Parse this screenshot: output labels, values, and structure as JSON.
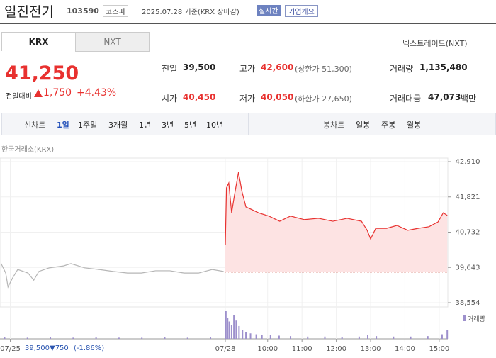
{
  "header": {
    "name": "일진전기",
    "code": "103590",
    "market": "코스피",
    "date": "2025.07.28 기준(KRX 장마감)",
    "realtime": "실시간",
    "company": "기업개요"
  },
  "tabs": [
    "KRX",
    "NXT"
  ],
  "nxt_link": "넥스트레이드(NXT)",
  "quote": {
    "price": "41,250",
    "change_label": "전일대비",
    "change": "1,750",
    "change_rate": "+4.43%",
    "items": [
      {
        "label": "전일",
        "value": "39,500"
      },
      {
        "label": "고가",
        "value": "42,600",
        "note": "(상한가 51,300)"
      },
      {
        "label": "거래량",
        "value": "1,135,480"
      },
      {
        "label": "시가",
        "value": "40,450"
      },
      {
        "label": "저가",
        "value": "40,050",
        "note": "(하한가 27,650)"
      },
      {
        "label": "거래대금",
        "value": "47,073",
        "unit": "백만"
      }
    ]
  },
  "toolbar": {
    "line_label": "선차트",
    "periods": [
      "1일",
      "1주일",
      "3개월",
      "1년",
      "3년",
      "5년",
      "10년"
    ],
    "candle_label": "봉차트",
    "candles": [
      "일봉",
      "주봉",
      "월봉"
    ]
  },
  "chart_data": {
    "type": "line",
    "source": "한국거래소(KRX)",
    "volume_label": "거래량",
    "xlim": [
      132,
      915
    ],
    "xticks": [
      {
        "value": 150,
        "label": "07/25"
      },
      {
        "value": 526,
        "label": "07/28"
      },
      {
        "value": 600,
        "label": "10:00"
      },
      {
        "value": 660,
        "label": "11:00"
      },
      {
        "value": 720,
        "label": "12:00"
      },
      {
        "value": 780,
        "label": "13:00"
      },
      {
        "value": 840,
        "label": "14:00"
      },
      {
        "value": 900,
        "label": "15:00"
      }
    ],
    "ylim": [
      38554,
      42910
    ],
    "yticks": [
      {
        "value": 42910,
        "label": "42,910"
      },
      {
        "value": 41821,
        "label": "41,821"
      },
      {
        "value": 40732,
        "label": "40,732"
      },
      {
        "value": 39643,
        "label": "39,643"
      },
      {
        "value": 38554,
        "label": "38,554"
      }
    ],
    "grid": true,
    "reference_line": 39500,
    "series": [
      {
        "color": "#b5b5b5",
        "x": [
          134,
          142,
          146,
          154,
          163,
          181,
          191,
          200,
          218,
          243,
          256,
          280,
          305,
          330,
          355,
          379,
          404,
          429,
          454,
          479,
          503,
          523
        ],
        "values": [
          39760,
          39470,
          39040,
          39320,
          39580,
          39470,
          39250,
          39520,
          39630,
          39690,
          39760,
          39630,
          39580,
          39520,
          39470,
          39470,
          39540,
          39540,
          39470,
          39470,
          39580,
          39520
        ]
      },
      {
        "color": "#e8312f",
        "fill": true,
        "x": [
          526,
          528,
          532,
          537,
          542,
          549,
          555,
          562,
          571,
          584,
          602,
          621,
          640,
          664,
          689,
          714,
          739,
          764,
          774,
          780,
          789,
          808,
          826,
          845,
          863,
          882,
          898,
          907,
          914
        ],
        "values": [
          40350,
          42100,
          42250,
          41330,
          41880,
          42580,
          41990,
          41510,
          41440,
          41330,
          41230,
          41070,
          41230,
          41120,
          41160,
          41070,
          41160,
          41070,
          40790,
          40520,
          40850,
          40850,
          40940,
          40790,
          40850,
          40900,
          41050,
          41330,
          41250
        ]
      }
    ],
    "volume": {
      "color": "#9d90cc",
      "x": [
        140,
        180,
        220,
        260,
        300,
        340,
        380,
        420,
        460,
        500,
        527,
        530,
        533,
        537,
        541,
        545,
        550,
        556,
        562,
        570,
        580,
        590,
        605,
        620,
        640,
        670,
        700,
        730,
        760,
        775,
        790,
        820,
        850,
        880,
        905,
        914
      ],
      "values": [
        3000,
        2500,
        3000,
        2500,
        3000,
        2500,
        2500,
        3000,
        2500,
        3000,
        62000,
        45000,
        38000,
        30000,
        52000,
        40000,
        28000,
        20000,
        15000,
        12000,
        10000,
        9000,
        8000,
        7000,
        6000,
        5000,
        5000,
        4000,
        5000,
        9000,
        6000,
        5000,
        5000,
        6000,
        10000,
        20000
      ]
    }
  },
  "footer": {
    "price": "39,500",
    "change": "▼750",
    "rate": "(-1.86%)"
  }
}
